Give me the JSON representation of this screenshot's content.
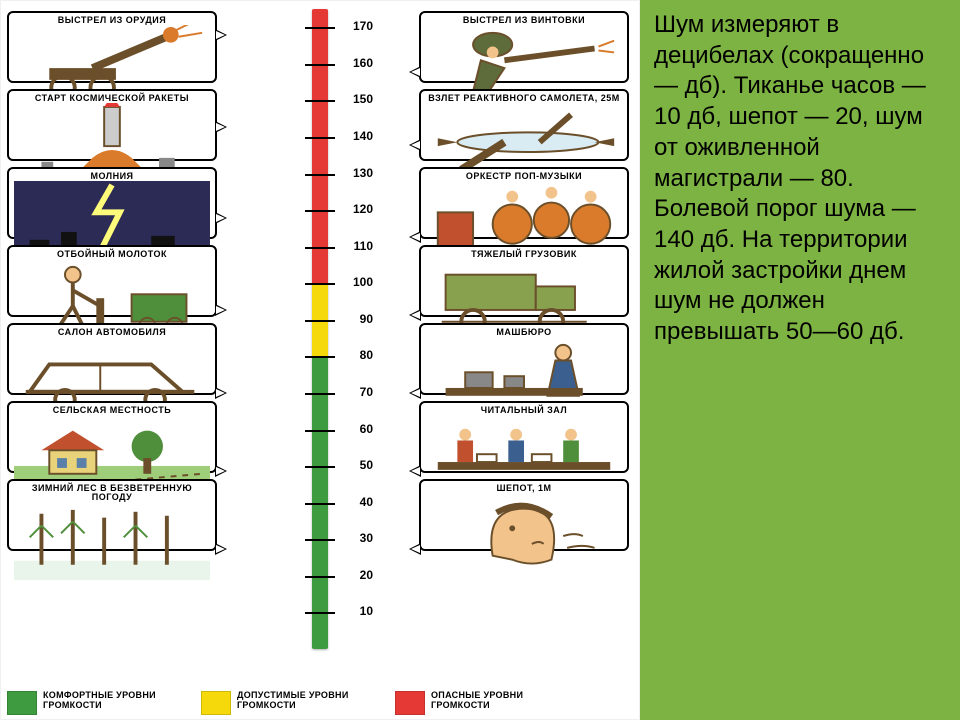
{
  "background_color": "#7cb342",
  "diagram": {
    "left_column": [
      {
        "name": "gun-shot",
        "label": "ВЫСТРЕЛ ИЗ ОРУДИЯ",
        "db": 170,
        "svg": "artillery"
      },
      {
        "name": "rocket-launch",
        "label": "СТАРТ КОСМИЧЕСКОЙ РАКЕТЫ",
        "db": 145,
        "svg": "rocket"
      },
      {
        "name": "lightning",
        "label": "МОЛНИЯ",
        "db": 120,
        "svg": "lightning"
      },
      {
        "name": "jackhammer",
        "label": "ОТБОЙНЫЙ МОЛОТОК",
        "db": 95,
        "svg": "jackhammer"
      },
      {
        "name": "car-interior",
        "label": "САЛОН АВТОМОБИЛЯ",
        "db": 65,
        "svg": "car"
      },
      {
        "name": "countryside",
        "label": "СЕЛЬСКАЯ МЕСТНОСТЬ",
        "db": 40,
        "svg": "countryside"
      },
      {
        "name": "winter-forest",
        "label": "ЗИМНИЙ ЛЕС В БЕЗВЕТРЕННУЮ ПОГОДУ",
        "db": 15,
        "svg": "forest"
      }
    ],
    "right_column": [
      {
        "name": "rifle-shot",
        "label": "ВЫСТРЕЛ ИЗ ВИНТОВКИ",
        "db": 160,
        "svg": "rifle"
      },
      {
        "name": "jet-takeoff",
        "label": "ВЗЛЕТ РЕАКТИВНОГО САМОЛЕТА, 25М",
        "db": 140,
        "svg": "jet"
      },
      {
        "name": "pop-orchestra",
        "label": "ОРКЕСТР ПОП-МУЗЫКИ",
        "db": 112,
        "svg": "band"
      },
      {
        "name": "heavy-truck",
        "label": "ТЯЖЕЛЫЙ ГРУЗОВИК",
        "db": 90,
        "svg": "truck"
      },
      {
        "name": "typing-office",
        "label": "МАШБЮРО",
        "db": 65,
        "svg": "office"
      },
      {
        "name": "reading-room",
        "label": "ЧИТАЛЬНЫЙ ЗАЛ",
        "db": 40,
        "svg": "library"
      },
      {
        "name": "whisper",
        "label": "ШЕПОТ, 1М",
        "db": 20,
        "svg": "whisper"
      }
    ],
    "scale": {
      "min": 0,
      "max": 175,
      "tick_step": 10,
      "tick_color": "#000",
      "tick_fontsize": 12,
      "zones": [
        {
          "from": 0,
          "to": 80,
          "color": "#3f9b3f"
        },
        {
          "from": 80,
          "to": 100,
          "color": "#f5d90a"
        },
        {
          "from": 100,
          "to": 175,
          "color": "#e53935"
        }
      ]
    },
    "legend": [
      {
        "color": "#3f9b3f",
        "text": "КОМФОРТНЫЕ УРОВНИ ГРОМКОСТИ"
      },
      {
        "color": "#f5d90a",
        "text": "ДОПУСТИМЫЕ УРОВНИ ГРОМКОСТИ"
      },
      {
        "color": "#e53935",
        "text": "ОПАСНЫЕ УРОВНИ ГРОМКОСТИ"
      }
    ],
    "colors": {
      "card_border": "#000000",
      "ink": "#6b4f2a",
      "accent_green": "#4f8f3c",
      "accent_blue": "#3b5f8f",
      "accent_orange": "#d97b2b"
    }
  },
  "text": "Шум измеряют в децибелах (сокращенно — дб). Тиканье часов — 10 дб, шепот — 20, шум от оживленной магистрали — 80. Болевой порог шума — 140 дб. На территории жилой застройки днем шум не должен превышать 50—60 дб."
}
